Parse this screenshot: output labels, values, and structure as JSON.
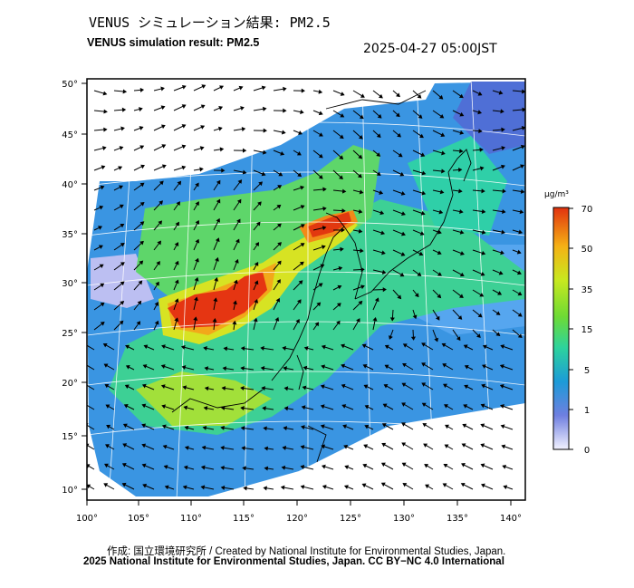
{
  "header": {
    "title_ja": "VENUS シミュレーション結果: PM2.5",
    "title_en": "VENUS simulation result: PM2.5",
    "timestamp": "2025-04-27 05:00JST"
  },
  "map": {
    "x_ticks": [
      "100°",
      "105°",
      "110°",
      "115°",
      "120°",
      "125°",
      "130°",
      "135°",
      "140°"
    ],
    "y_ticks": [
      "50°",
      "45°",
      "40°",
      "35°",
      "30°",
      "25°",
      "20°",
      "15°",
      "10°"
    ]
  },
  "colorbar": {
    "unit": "μg/m³",
    "ticks": [
      "70",
      "50",
      "35",
      "15",
      "5",
      "1",
      "0"
    ],
    "colors": [
      "#d9d9ff",
      "#6f7fe0",
      "#1c9bd8",
      "#2dd39d",
      "#6edb34",
      "#c8e81f",
      "#f5b115",
      "#e1320f"
    ]
  },
  "footer": {
    "credit": "作成: 国立環境研究所 / Created by National Institute for Environmental Studies, Japan.",
    "copyright": "2025 National Institute for Environmental Studies, Japan. CC BY−NC 4.0 International"
  }
}
